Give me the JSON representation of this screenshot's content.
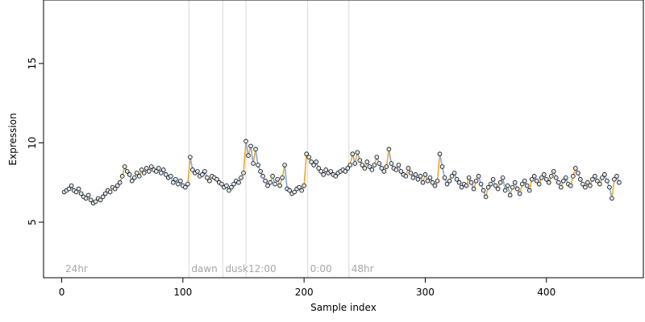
{
  "chart_data": {
    "type": "scatter",
    "xlabel": "Sample index",
    "ylabel": "Expression",
    "xlim": [
      -15,
      480
    ],
    "ylim": [
      1.5,
      19
    ],
    "x_ticks": [
      0,
      100,
      200,
      300,
      400
    ],
    "y_ticks": [
      5,
      10,
      15
    ],
    "point_style": "open circle, light fill",
    "colors": {
      "up_segment": "#f5a623",
      "down_segment": "#7fa7d9",
      "point_fill": "#dde7f3",
      "point_edge": "#000000",
      "divider": "#d9d9d9",
      "region_label": "#a6a6a6"
    },
    "regions": [
      {
        "x": 1,
        "label": "24hr"
      },
      {
        "x": 105,
        "label": "dawn"
      },
      {
        "x": 133,
        "label": "dusk"
      },
      {
        "x": 152,
        "label": "12:00"
      },
      {
        "x": 203,
        "label": "0:00"
      },
      {
        "x": 237,
        "label": "48hr"
      }
    ],
    "series": [
      {
        "x": [
          2,
          4,
          6,
          8,
          10,
          12,
          14,
          16,
          18,
          20,
          22,
          24,
          26,
          28,
          30,
          32,
          34,
          36,
          38,
          40,
          42,
          44,
          46,
          48,
          50,
          52,
          54,
          56,
          58,
          60,
          62,
          64,
          66,
          68,
          70,
          72,
          74,
          76,
          78,
          80,
          82,
          84,
          86,
          88,
          90,
          92,
          94,
          96,
          98,
          100,
          102,
          104,
          106,
          108,
          110,
          112,
          114,
          116,
          118,
          120,
          122,
          124,
          126,
          128,
          130,
          132,
          134,
          136,
          138,
          140,
          142,
          144,
          146,
          148,
          150,
          152,
          154,
          156,
          158,
          160,
          162,
          164,
          166,
          168,
          170,
          172,
          174,
          176,
          178,
          180,
          182,
          184,
          186,
          188,
          190,
          192,
          194,
          196,
          198,
          200,
          202,
          204,
          206,
          208,
          210,
          212,
          214,
          216,
          218,
          220,
          222,
          224,
          226,
          228,
          230,
          232,
          234,
          236,
          238,
          240,
          242,
          244,
          246,
          248,
          250,
          252,
          254,
          256,
          258,
          260,
          262,
          264,
          266,
          268,
          270,
          272,
          274,
          276,
          278,
          280,
          282,
          284,
          286,
          288,
          290,
          292,
          294,
          296,
          298,
          300,
          302,
          304,
          306,
          308,
          310,
          312,
          314,
          316,
          318,
          320,
          322,
          324,
          326,
          328,
          330,
          332,
          334,
          336,
          338,
          340,
          342,
          344,
          346,
          348,
          350,
          352,
          354,
          356,
          358,
          360,
          362,
          364,
          366,
          368,
          370,
          372,
          374,
          376,
          378,
          380,
          382,
          384,
          386,
          388,
          390,
          392,
          394,
          396,
          398,
          400,
          402,
          404,
          406,
          408,
          410,
          412,
          414,
          416,
          418,
          420,
          422,
          424,
          426,
          428,
          430,
          432,
          434,
          436,
          438,
          440,
          442,
          444,
          446,
          448,
          450,
          452,
          454,
          456,
          458,
          460
        ],
        "y": [
          6.9,
          7.0,
          7.1,
          7.3,
          7.0,
          6.9,
          7.1,
          6.8,
          6.6,
          6.5,
          6.7,
          6.4,
          6.2,
          6.3,
          6.5,
          6.4,
          6.6,
          6.8,
          7.0,
          6.9,
          7.2,
          7.1,
          7.3,
          7.5,
          7.9,
          8.5,
          8.2,
          8.0,
          7.6,
          7.8,
          8.1,
          7.9,
          8.3,
          8.1,
          8.4,
          8.2,
          8.5,
          8.3,
          8.2,
          8.4,
          8.1,
          8.3,
          8.0,
          7.8,
          7.9,
          7.5,
          7.7,
          7.4,
          7.6,
          7.3,
          7.2,
          7.4,
          9.1,
          8.3,
          8.1,
          8.2,
          7.9,
          8.0,
          8.2,
          7.8,
          7.6,
          7.9,
          7.8,
          7.7,
          7.5,
          7.4,
          7.2,
          7.3,
          7.0,
          7.2,
          7.4,
          7.6,
          7.5,
          7.8,
          8.1,
          10.1,
          9.2,
          9.8,
          8.7,
          9.6,
          8.6,
          8.2,
          7.9,
          7.6,
          7.3,
          7.5,
          7.9,
          7.4,
          7.7,
          7.3,
          7.8,
          8.6,
          7.1,
          7.0,
          6.8,
          6.9,
          7.1,
          7.2,
          7.0,
          7.3,
          9.3,
          9.1,
          8.8,
          8.6,
          8.8,
          8.4,
          8.2,
          8.0,
          8.3,
          8.1,
          8.2,
          8.0,
          7.9,
          8.1,
          8.2,
          8.3,
          8.2,
          8.4,
          8.6,
          9.3,
          8.7,
          9.4,
          8.9,
          8.6,
          8.4,
          8.8,
          8.5,
          8.3,
          8.6,
          9.1,
          8.7,
          8.4,
          8.2,
          8.5,
          9.6,
          8.7,
          8.4,
          8.3,
          8.6,
          8.2,
          8.0,
          7.9,
          8.4,
          8.1,
          7.8,
          8.0,
          7.7,
          7.9,
          7.5,
          8.0,
          7.6,
          7.8,
          7.5,
          7.3,
          7.6,
          9.3,
          8.5,
          7.8,
          7.4,
          7.6,
          7.9,
          8.1,
          7.7,
          7.5,
          7.2,
          7.4,
          7.3,
          7.8,
          7.5,
          7.1,
          7.6,
          7.9,
          7.4,
          7.0,
          6.6,
          7.2,
          7.4,
          7.7,
          7.3,
          7.1,
          7.5,
          7.8,
          7.0,
          7.3,
          6.7,
          7.2,
          7.5,
          7.1,
          6.8,
          7.4,
          7.6,
          7.3,
          7.0,
          7.7,
          7.9,
          7.6,
          7.4,
          7.8,
          8.0,
          7.7,
          7.5,
          7.9,
          8.2,
          7.8,
          7.5,
          7.2,
          7.6,
          7.8,
          7.4,
          7.3,
          7.9,
          8.4,
          8.1,
          7.7,
          7.4,
          7.2,
          7.5,
          7.3,
          7.7,
          7.9,
          7.6,
          7.4,
          7.8,
          8.0,
          7.6,
          7.2,
          6.5,
          7.7,
          7.9,
          7.5
        ]
      }
    ]
  }
}
